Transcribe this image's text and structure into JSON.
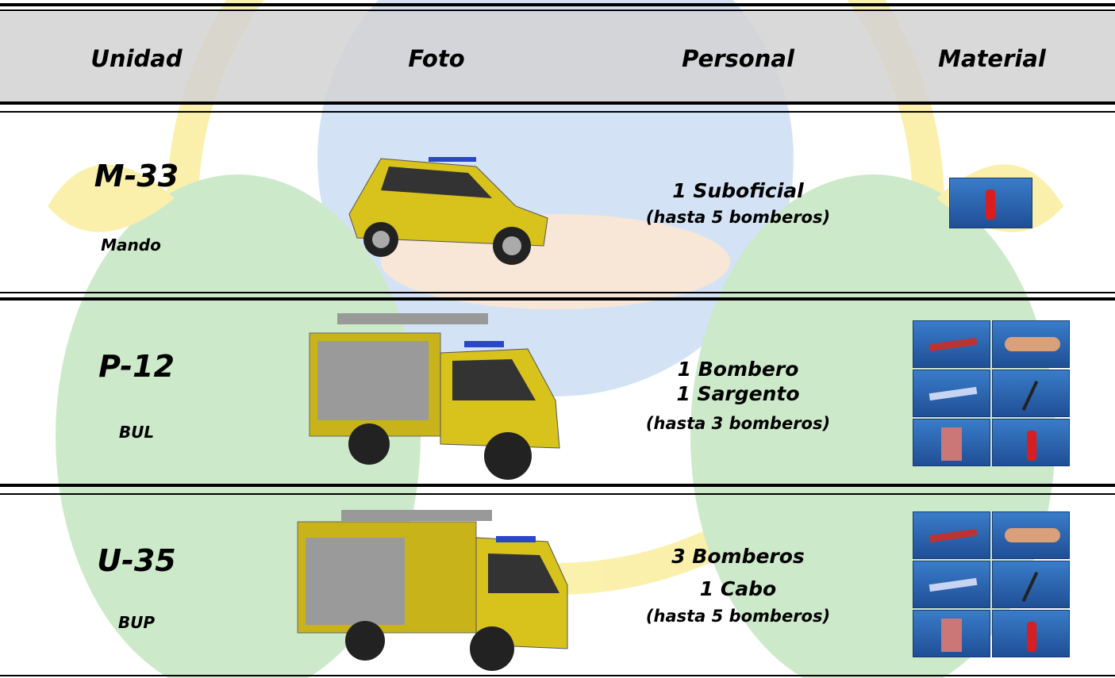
{
  "header": {
    "columns": [
      "Unidad",
      "Foto",
      "Personal",
      "Material"
    ]
  },
  "rows": [
    {
      "code": "M-33",
      "type": "Mando",
      "personal": [
        "1 Suboficial"
      ],
      "note": "(hasta 5 bomberos)"
    },
    {
      "code": "P-12",
      "type": "BUL",
      "personal": [
        "1 Bombero",
        "1 Sargento"
      ],
      "note": "(hasta 3 bomberos)"
    },
    {
      "code": "U-35",
      "type": "BUP",
      "personal": [
        "3 Bomberos",
        "1 Cabo"
      ],
      "note": "(hasta 5 bomberos)"
    }
  ]
}
